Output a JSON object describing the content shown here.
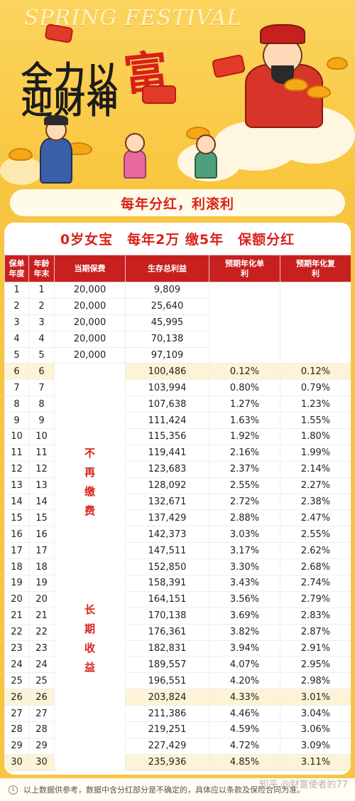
{
  "banner": {
    "english_title": "SPRING FESTIVAL",
    "line1": "全力以",
    "line1_big": "富",
    "line2": "迎财神"
  },
  "subtitle": "每年分红，利滚利",
  "card_title": "0岁女宝　每年2万 缴5年　保额分红",
  "table": {
    "headers": [
      "保单年度",
      "年龄年末",
      "当期保费",
      "生存总利益",
      "预期年化单利",
      "预期年化复利"
    ],
    "merged_texts": [
      "不再缴费",
      "长期收益"
    ],
    "rows": [
      [
        "1",
        "1",
        "20,000",
        "9,809",
        "",
        ""
      ],
      [
        "2",
        "2",
        "20,000",
        "25,640",
        "",
        ""
      ],
      [
        "3",
        "3",
        "20,000",
        "45,995",
        "",
        ""
      ],
      [
        "4",
        "4",
        "20,000",
        "70,138",
        "",
        ""
      ],
      [
        "5",
        "5",
        "20,000",
        "97,109",
        "",
        ""
      ],
      [
        "6",
        "6",
        "",
        "100,486",
        "0.12%",
        "0.12%"
      ],
      [
        "7",
        "7",
        "",
        "103,994",
        "0.80%",
        "0.79%"
      ],
      [
        "8",
        "8",
        "",
        "107,638",
        "1.27%",
        "1.23%"
      ],
      [
        "9",
        "9",
        "",
        "111,424",
        "1.63%",
        "1.55%"
      ],
      [
        "10",
        "10",
        "",
        "115,356",
        "1.92%",
        "1.80%"
      ],
      [
        "11",
        "11",
        "",
        "119,441",
        "2.16%",
        "1.99%"
      ],
      [
        "12",
        "12",
        "",
        "123,683",
        "2.37%",
        "2.14%"
      ],
      [
        "13",
        "13",
        "",
        "128,092",
        "2.55%",
        "2.27%"
      ],
      [
        "14",
        "14",
        "",
        "132,671",
        "2.72%",
        "2.38%"
      ],
      [
        "15",
        "15",
        "",
        "137,429",
        "2.88%",
        "2.47%"
      ],
      [
        "16",
        "16",
        "",
        "142,373",
        "3.03%",
        "2.55%"
      ],
      [
        "17",
        "17",
        "",
        "147,511",
        "3.17%",
        "2.62%"
      ],
      [
        "18",
        "18",
        "",
        "152,850",
        "3.30%",
        "2.68%"
      ],
      [
        "19",
        "19",
        "",
        "158,391",
        "3.43%",
        "2.74%"
      ],
      [
        "20",
        "20",
        "",
        "164,151",
        "3.56%",
        "2.79%"
      ],
      [
        "21",
        "21",
        "",
        "170,138",
        "3.69%",
        "2.83%"
      ],
      [
        "22",
        "22",
        "",
        "176,361",
        "3.82%",
        "2.87%"
      ],
      [
        "23",
        "23",
        "",
        "182,831",
        "3.94%",
        "2.91%"
      ],
      [
        "24",
        "24",
        "",
        "189,557",
        "4.07%",
        "2.95%"
      ],
      [
        "25",
        "25",
        "",
        "196,551",
        "4.20%",
        "2.98%"
      ],
      [
        "26",
        "26",
        "",
        "203,824",
        "4.33%",
        "3.01%"
      ],
      [
        "27",
        "27",
        "",
        "211,386",
        "4.46%",
        "3.04%"
      ],
      [
        "28",
        "28",
        "",
        "219,251",
        "4.59%",
        "3.06%"
      ],
      [
        "29",
        "29",
        "",
        "227,429",
        "4.72%",
        "3.09%"
      ],
      [
        "30",
        "30",
        "",
        "235,936",
        "4.85%",
        "3.11%"
      ]
    ],
    "highlight_rows": [
      6,
      26,
      30
    ]
  },
  "footer": {
    "icon": "info-icon",
    "text": "以上数据供参考，数据中含分红部分是不确定的，具体应以条款及保险合同为准。",
    "watermark": "知乎 @财富使者的77"
  },
  "colors": {
    "background": "#f7c542",
    "header_red": "#c8201f",
    "accent_red": "#d8231a",
    "highlight": "#fdf3d6"
  }
}
